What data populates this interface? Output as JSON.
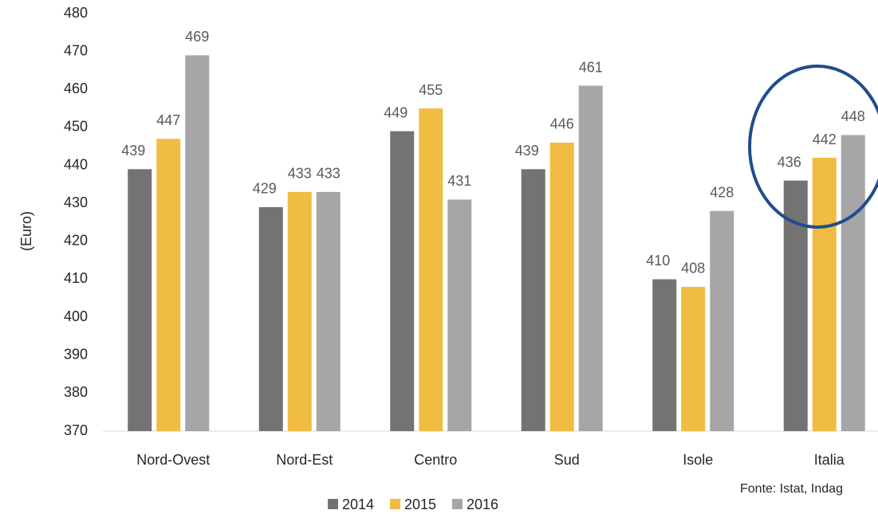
{
  "chart_data": {
    "type": "bar",
    "y_label": "(Euro)",
    "categories": [
      "Nord-Ovest",
      "Nord-Est",
      "Centro",
      "Sud",
      "Isole",
      "Italia"
    ],
    "series": [
      {
        "name": "2014",
        "color": "#737373",
        "values": [
          439,
          429,
          449,
          439,
          410,
          436
        ]
      },
      {
        "name": "2015",
        "color": "#f0bc42",
        "values": [
          447,
          433,
          455,
          446,
          408,
          442
        ]
      },
      {
        "name": "2016",
        "color": "#a6a6a6",
        "values": [
          469,
          433,
          431,
          461,
          428,
          448
        ]
      }
    ],
    "ylim": [
      370,
      480
    ],
    "yticks": [
      370,
      380,
      390,
      400,
      410,
      420,
      430,
      440,
      450,
      460,
      470,
      480
    ],
    "grid": false,
    "legend": "bottom",
    "source": "Fonte: Istat, Indag"
  }
}
